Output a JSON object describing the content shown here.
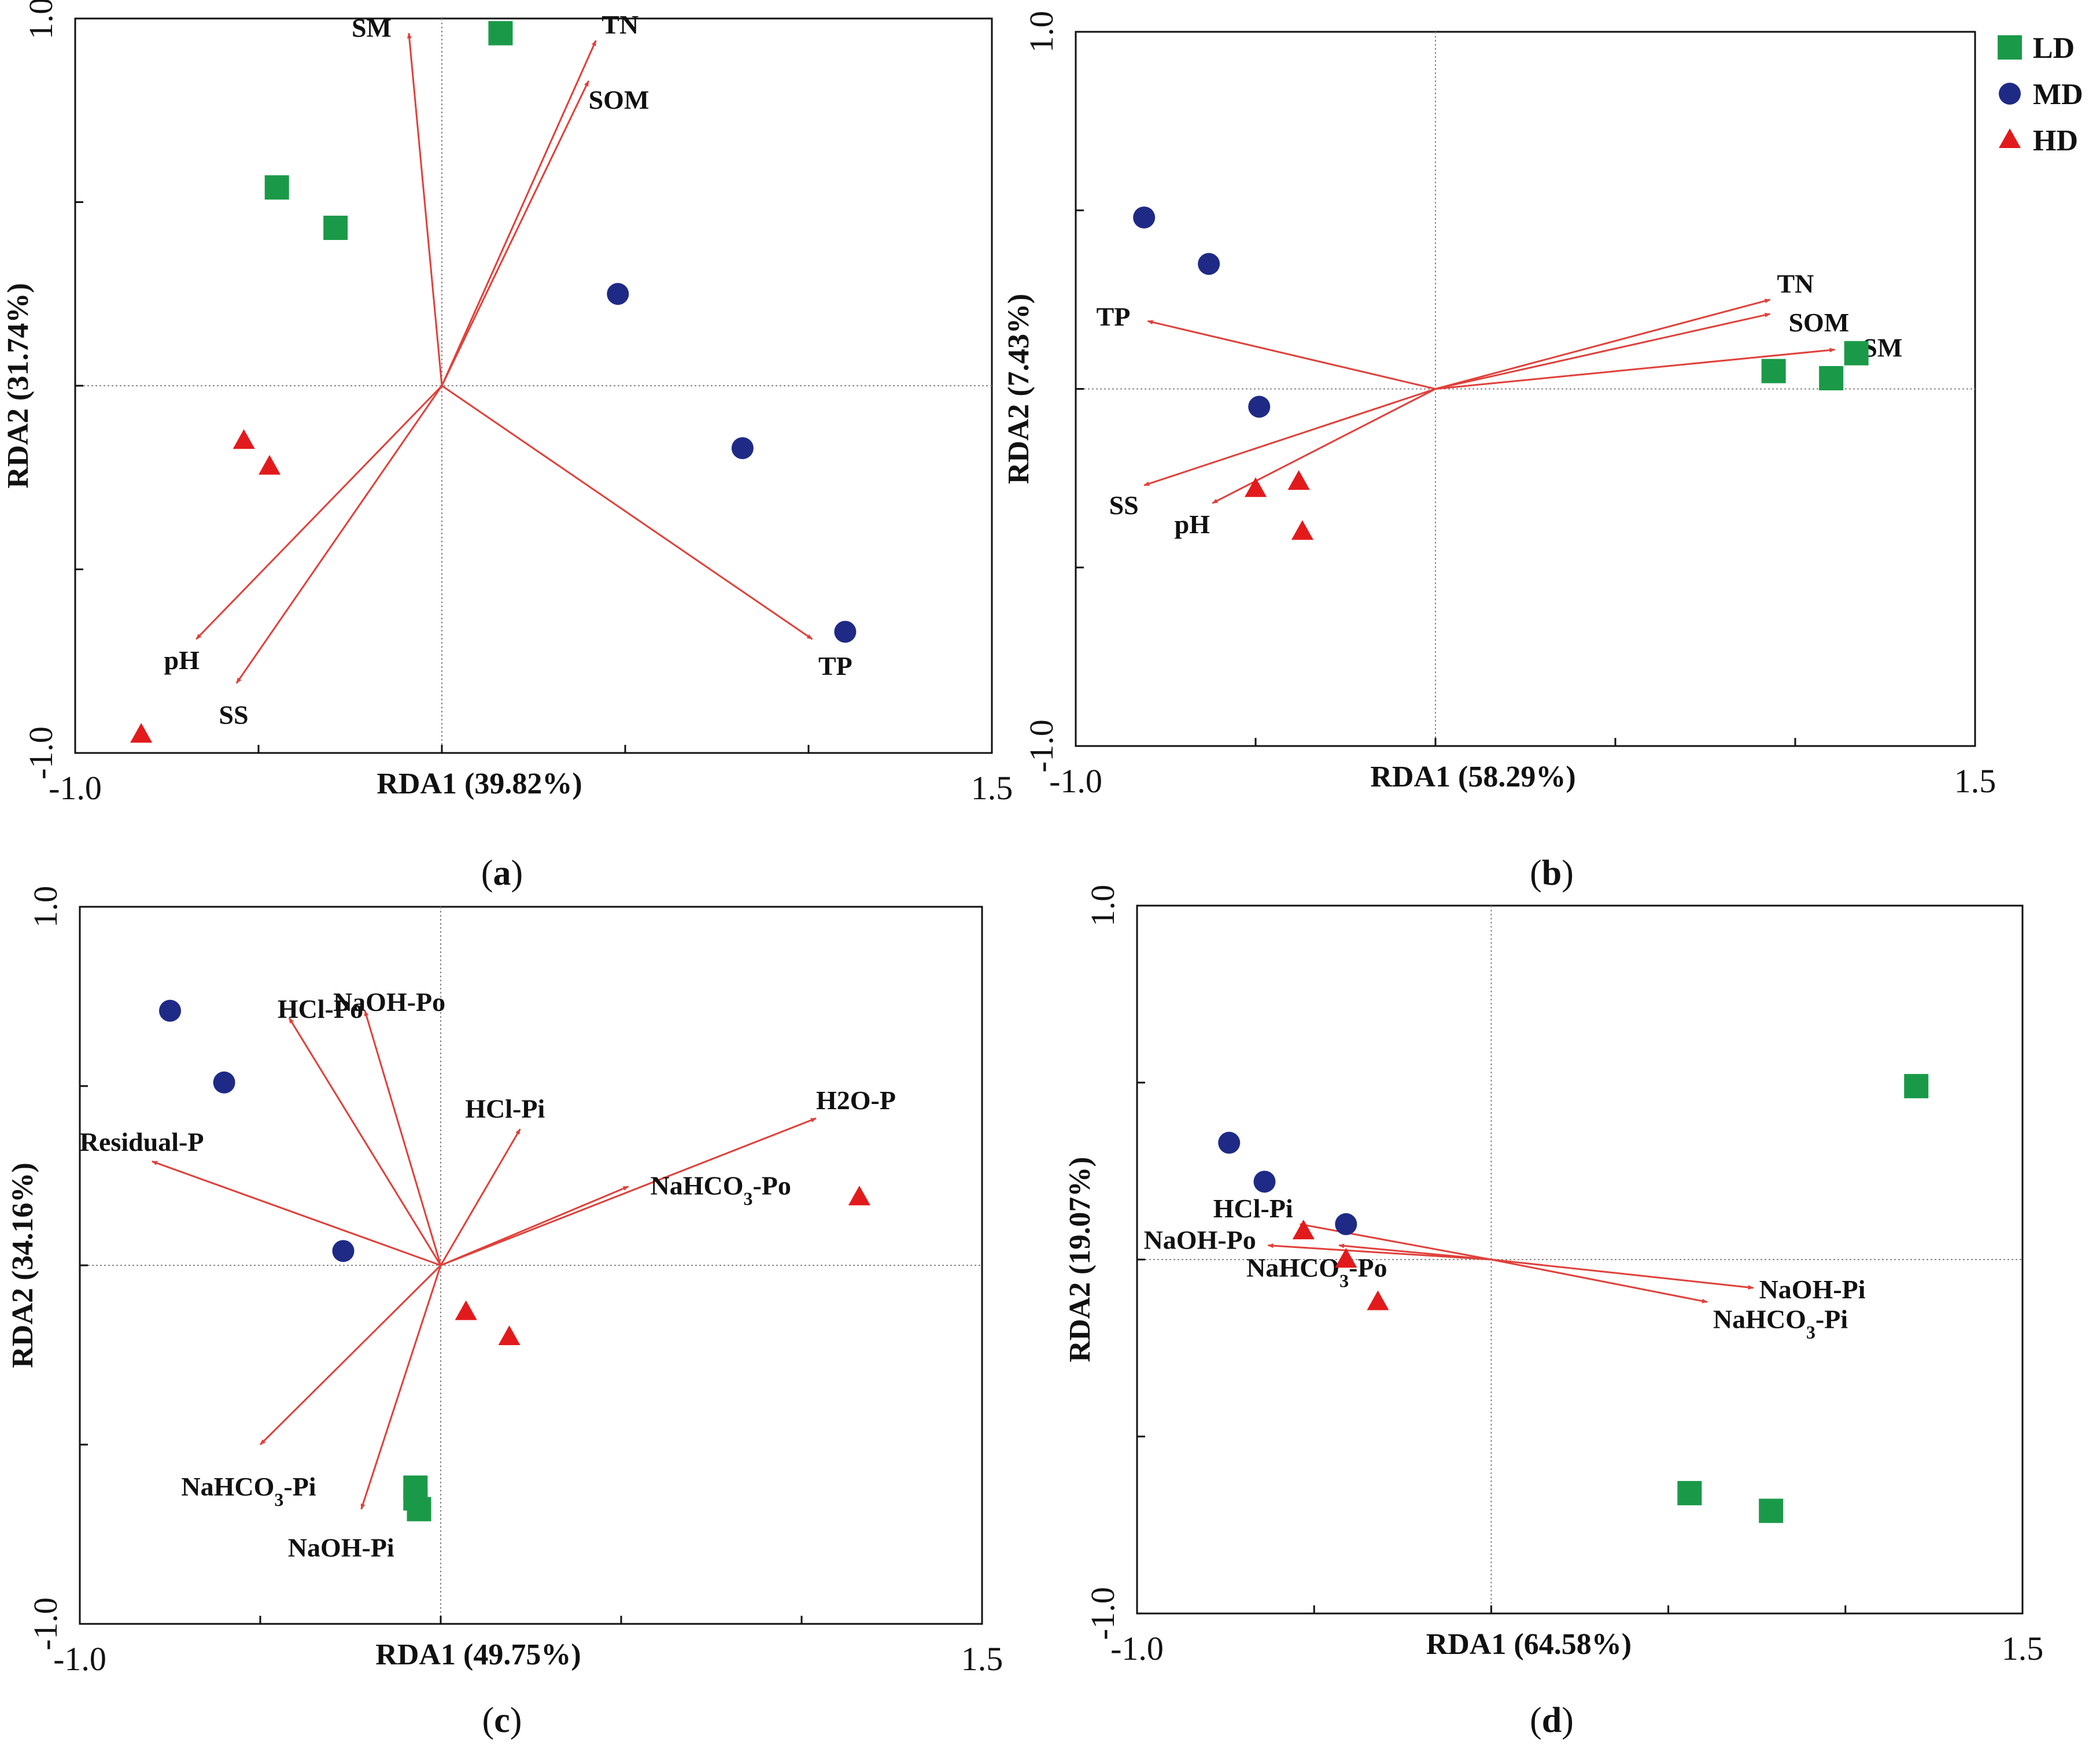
{
  "colors": {
    "LD": "#1a9a48",
    "MD": "#1f2a86",
    "HD": "#e31a1c",
    "arrow": "#e0403a",
    "axis": "#111111",
    "grid": "#888888"
  },
  "legend": [
    {
      "key": "LD",
      "label": "LD",
      "shape": "square"
    },
    {
      "key": "MD",
      "label": "MD",
      "shape": "circle"
    },
    {
      "key": "HD",
      "label": "HD",
      "shape": "triangle"
    }
  ],
  "chart_data": [
    {
      "type": "scatter",
      "panel": "a",
      "caption": "a",
      "xlabel": "RDA1 (39.82%)",
      "ylabel": "RDA2 (31.74%)",
      "xlim": [
        -1.0,
        1.5
      ],
      "ylim": [
        -1.0,
        1.0
      ],
      "xtick_labels": [
        "-1.0",
        "1.5"
      ],
      "ytick_labels": [
        "1.0",
        "-1.0"
      ],
      "vectors": [
        {
          "label": "SM",
          "x": -0.09,
          "y": 0.96
        },
        {
          "label": "TN",
          "x": 0.42,
          "y": 0.94
        },
        {
          "label": "SOM",
          "x": 0.4,
          "y": 0.83
        },
        {
          "label": "pH",
          "x": -0.67,
          "y": -0.69
        },
        {
          "label": "SS",
          "x": -0.56,
          "y": -0.81
        },
        {
          "label": "TP",
          "x": 1.01,
          "y": -0.69
        }
      ],
      "series": [
        {
          "name": "LD",
          "points": [
            {
              "x": 0.16,
              "y": 0.96
            },
            {
              "x": -0.45,
              "y": 0.54
            },
            {
              "x": -0.29,
              "y": 0.43
            }
          ]
        },
        {
          "name": "MD",
          "points": [
            {
              "x": 0.48,
              "y": 0.25
            },
            {
              "x": 0.82,
              "y": -0.17
            },
            {
              "x": 1.1,
              "y": -0.67
            }
          ]
        },
        {
          "name": "HD",
          "points": [
            {
              "x": -0.54,
              "y": -0.15
            },
            {
              "x": -0.47,
              "y": -0.22
            },
            {
              "x": -0.82,
              "y": -0.95
            }
          ]
        }
      ]
    },
    {
      "type": "scatter",
      "panel": "b",
      "caption": "b",
      "xlabel": "RDA1 (58.29%)",
      "ylabel": "RDA2 (7.43%)",
      "xlim": [
        -1.0,
        1.5
      ],
      "ylim": [
        -1.0,
        1.0
      ],
      "xtick_labels": [
        "-1.0",
        "1.5"
      ],
      "ytick_labels": [
        "1.0",
        "-1.0"
      ],
      "vectors": [
        {
          "label": "TN",
          "x": 0.93,
          "y": 0.25
        },
        {
          "label": "SOM",
          "x": 0.93,
          "y": 0.21
        },
        {
          "label": "SM",
          "x": 1.11,
          "y": 0.11
        },
        {
          "label": "TP",
          "x": -0.8,
          "y": 0.19
        },
        {
          "label": "SS",
          "x": -0.81,
          "y": -0.27
        },
        {
          "label": "pH",
          "x": -0.62,
          "y": -0.32
        }
      ],
      "series": [
        {
          "name": "LD",
          "points": [
            {
              "x": 1.17,
              "y": 0.1
            },
            {
              "x": 0.94,
              "y": 0.05
            },
            {
              "x": 1.1,
              "y": 0.03
            }
          ]
        },
        {
          "name": "MD",
          "points": [
            {
              "x": -0.81,
              "y": 0.48
            },
            {
              "x": -0.63,
              "y": 0.35
            },
            {
              "x": -0.49,
              "y": -0.05
            }
          ]
        },
        {
          "name": "HD",
          "points": [
            {
              "x": -0.5,
              "y": -0.28
            },
            {
              "x": -0.38,
              "y": -0.26
            },
            {
              "x": -0.37,
              "y": -0.4
            }
          ]
        }
      ]
    },
    {
      "type": "scatter",
      "panel": "c",
      "caption": "c",
      "xlabel": "RDA1 (49.75%)",
      "ylabel": "RDA2 (34.16%)",
      "xlim": [
        -1.0,
        1.5
      ],
      "ylim": [
        -1.0,
        1.0
      ],
      "xtick_labels": [
        "-1.0",
        "1.5"
      ],
      "ytick_labels": [
        "1.0",
        "-1.0"
      ],
      "vectors": [
        {
          "label": "HCl-Po",
          "x": -0.42,
          "y": 0.69
        },
        {
          "label": "NaOH-Po",
          "x": -0.21,
          "y": 0.71
        },
        {
          "label": "HCl-Pi",
          "x": 0.22,
          "y": 0.38
        },
        {
          "label": "H2O-P",
          "x": 1.04,
          "y": 0.41
        },
        {
          "label": "NaHCO3-Po",
          "x": 0.52,
          "y": 0.22
        },
        {
          "label": "Residual-P",
          "x": -0.8,
          "y": 0.29
        },
        {
          "label": "NaHCO3-Pi",
          "x": -0.5,
          "y": -0.5
        },
        {
          "label": "NaOH-Pi",
          "x": -0.22,
          "y": -0.68
        }
      ],
      "series": [
        {
          "name": "LD",
          "points": [
            {
              "x": -0.07,
              "y": -0.62
            },
            {
              "x": -0.07,
              "y": -0.65
            },
            {
              "x": -0.06,
              "y": -0.68
            }
          ]
        },
        {
          "name": "MD",
          "points": [
            {
              "x": -0.75,
              "y": 0.71
            },
            {
              "x": -0.6,
              "y": 0.51
            },
            {
              "x": -0.27,
              "y": 0.04
            }
          ]
        },
        {
          "name": "HD",
          "points": [
            {
              "x": 1.16,
              "y": 0.19
            },
            {
              "x": 0.07,
              "y": -0.13
            },
            {
              "x": 0.19,
              "y": -0.2
            }
          ]
        }
      ]
    },
    {
      "type": "scatter",
      "panel": "d",
      "caption": "d",
      "xlabel": "RDA1 (64.58%)",
      "ylabel": "RDA2 (19.07%)",
      "xlim": [
        -1.0,
        1.5
      ],
      "ylim": [
        -1.0,
        1.0
      ],
      "xtick_labels": [
        "-1.0",
        "1.5"
      ],
      "ytick_labels": [
        "1.0",
        "-1.0"
      ],
      "vectors": [
        {
          "label": "HCl-Pi",
          "x": -0.54,
          "y": 0.1
        },
        {
          "label": "NaOH-Po",
          "x": -0.63,
          "y": 0.04
        },
        {
          "label": "NaHCO3-Po",
          "x": -0.43,
          "y": 0.04
        },
        {
          "label": "NaOH-Pi",
          "x": 0.74,
          "y": -0.08
        },
        {
          "label": "NaHCO3-Pi",
          "x": 0.61,
          "y": -0.12
        }
      ],
      "series": [
        {
          "name": "LD",
          "points": [
            {
              "x": 1.2,
              "y": 0.49
            },
            {
              "x": 0.56,
              "y": -0.66
            },
            {
              "x": 0.79,
              "y": -0.71
            }
          ]
        },
        {
          "name": "MD",
          "points": [
            {
              "x": -0.74,
              "y": 0.33
            },
            {
              "x": -0.64,
              "y": 0.22
            },
            {
              "x": -0.41,
              "y": 0.1
            }
          ]
        },
        {
          "name": "HD",
          "points": [
            {
              "x": -0.53,
              "y": 0.08
            },
            {
              "x": -0.41,
              "y": 0.0
            },
            {
              "x": -0.32,
              "y": -0.12
            }
          ]
        }
      ]
    }
  ]
}
